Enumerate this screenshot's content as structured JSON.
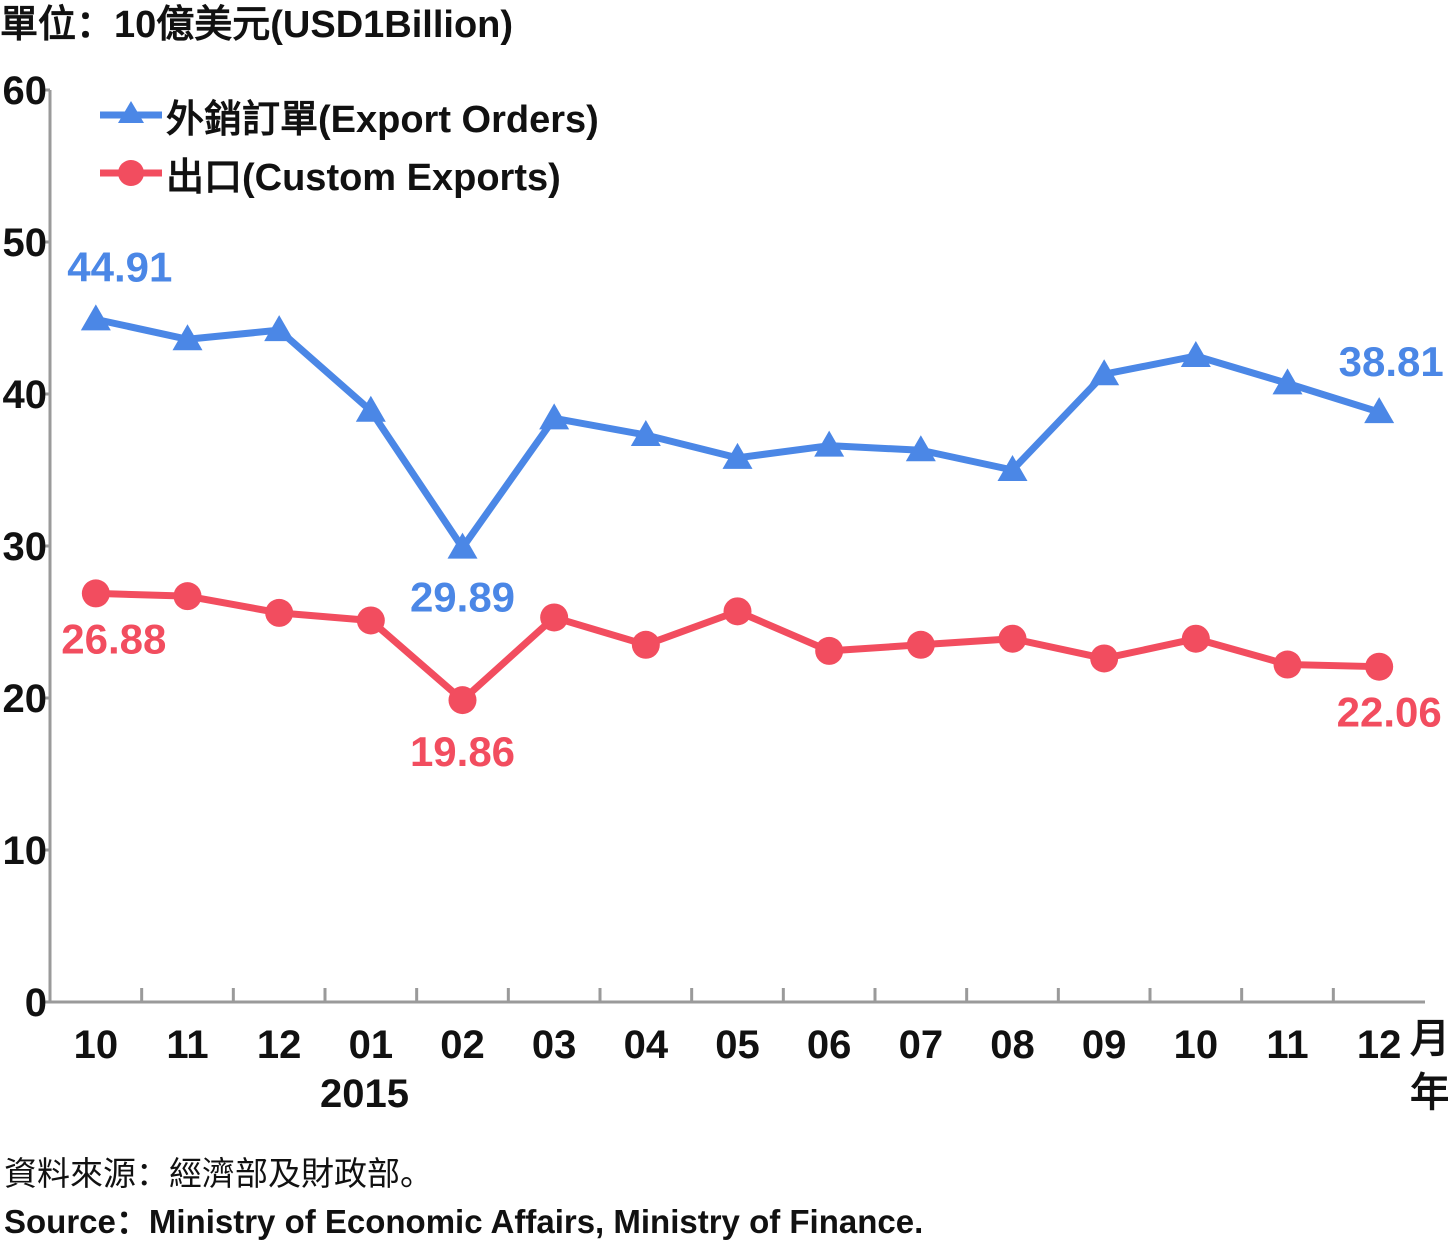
{
  "unit_label": "單位：10億美元(USD1Billion)",
  "source_zh": "資料來源：經濟部及財政部。",
  "source_en": "Source：Ministry of Economic Affairs, Ministry of Finance.",
  "year_label": "2015",
  "month_unit": "月",
  "year_unit": "年",
  "colors": {
    "export_orders": "#4b87e6",
    "custom_exports": "#f24d5f",
    "axis": "#9a9a9a"
  },
  "chart_data": {
    "type": "line",
    "categories": [
      "10",
      "11",
      "12",
      "01",
      "02",
      "03",
      "04",
      "05",
      "06",
      "07",
      "08",
      "09",
      "10",
      "11",
      "12"
    ],
    "ylim": [
      0,
      60
    ],
    "yticks": [
      0,
      10,
      20,
      30,
      40,
      50,
      60
    ],
    "legend_position": "top-left",
    "grid": false,
    "series": [
      {
        "name": "外銷訂單(Export Orders)",
        "marker": "triangle",
        "values": [
          44.91,
          43.6,
          44.2,
          38.9,
          29.89,
          38.4,
          37.3,
          35.8,
          36.6,
          36.3,
          35.0,
          41.3,
          42.5,
          40.7,
          38.81
        ],
        "labels": [
          {
            "index": 0,
            "text": "44.91"
          },
          {
            "index": 4,
            "text": "29.89"
          },
          {
            "index": 14,
            "text": "38.81"
          }
        ]
      },
      {
        "name": "出口(Custom Exports)",
        "marker": "circle",
        "values": [
          26.88,
          26.7,
          25.6,
          25.1,
          19.86,
          25.3,
          23.5,
          25.7,
          23.1,
          23.5,
          23.9,
          22.6,
          23.9,
          22.2,
          22.06
        ],
        "labels": [
          {
            "index": 0,
            "text": "26.88"
          },
          {
            "index": 4,
            "text": "19.86"
          },
          {
            "index": 14,
            "text": "22.06"
          }
        ]
      }
    ]
  }
}
